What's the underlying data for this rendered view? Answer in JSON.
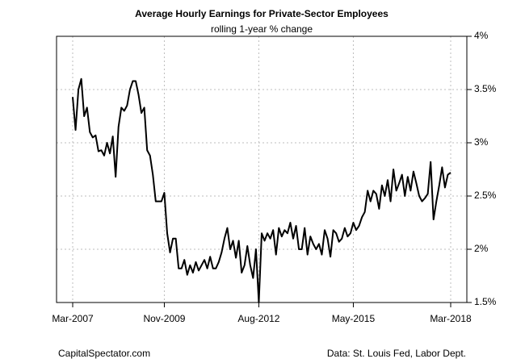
{
  "chart_data": {
    "type": "line",
    "title": "Average Hourly Earnings for Private-Sector Employees",
    "subtitle": "rolling 1-year % change",
    "caption": "CapitalSpectator.com",
    "source": "Data: St. Louis Fed, Labor Dept.",
    "color": "#000000",
    "grid": true,
    "categories": [
      "Mar-2007",
      null,
      null,
      null,
      null,
      null,
      null,
      null,
      null,
      null,
      null,
      null,
      null,
      null,
      null,
      null,
      null,
      null,
      null,
      null,
      null,
      null,
      null,
      null,
      null,
      null,
      null,
      null,
      null,
      null,
      null,
      null,
      "Nov-2009",
      null,
      null,
      null,
      null,
      null,
      null,
      null,
      null,
      null,
      null,
      null,
      null,
      null,
      null,
      null,
      null,
      null,
      null,
      null,
      null,
      null,
      null,
      null,
      null,
      null,
      null,
      null,
      null,
      null,
      null,
      null,
      null,
      "Aug-2012",
      null,
      null,
      null,
      null,
      null,
      null,
      null,
      null,
      null,
      null,
      null,
      null,
      null,
      null,
      null,
      null,
      null,
      null,
      null,
      null,
      null,
      null,
      null,
      null,
      null,
      null,
      null,
      null,
      null,
      null,
      null,
      null,
      "May-2015",
      null,
      null,
      null,
      null,
      null,
      null,
      null,
      null,
      null,
      null,
      null,
      null,
      null,
      null,
      null,
      null,
      null,
      null,
      null,
      null,
      null,
      null,
      null,
      null,
      null,
      null,
      null,
      null,
      null,
      null,
      null,
      null,
      null,
      "Mar-2018"
    ],
    "values": [
      3.43,
      3.12,
      3.5,
      3.6,
      3.25,
      3.33,
      3.1,
      3.05,
      3.07,
      2.92,
      2.93,
      2.88,
      3.0,
      2.9,
      3.06,
      2.68,
      3.15,
      3.33,
      3.3,
      3.35,
      3.5,
      3.58,
      3.58,
      3.45,
      3.28,
      3.33,
      2.93,
      2.88,
      2.7,
      2.45,
      2.45,
      2.45,
      2.53,
      2.15,
      1.97,
      2.1,
      2.1,
      1.82,
      1.82,
      1.9,
      1.76,
      1.85,
      1.78,
      1.88,
      1.8,
      1.85,
      1.9,
      1.82,
      1.93,
      1.82,
      1.82,
      1.88,
      1.97,
      2.1,
      2.2,
      2.0,
      2.08,
      1.92,
      2.08,
      1.78,
      1.85,
      2.03,
      1.85,
      1.73,
      2.0,
      1.5,
      2.15,
      2.08,
      2.15,
      2.1,
      2.18,
      1.95,
      2.2,
      2.12,
      2.18,
      2.15,
      2.25,
      2.1,
      2.22,
      2.0,
      2.0,
      2.2,
      1.95,
      2.12,
      2.05,
      2.0,
      2.05,
      1.95,
      2.18,
      2.1,
      1.93,
      2.18,
      2.15,
      2.07,
      2.1,
      2.2,
      2.12,
      2.15,
      2.25,
      2.18,
      2.22,
      2.3,
      2.35,
      2.55,
      2.45,
      2.55,
      2.52,
      2.38,
      2.6,
      2.5,
      2.65,
      2.45,
      2.75,
      2.55,
      2.62,
      2.7,
      2.5,
      2.68,
      2.55,
      2.73,
      2.62,
      2.5,
      2.45,
      2.48,
      2.52,
      2.82,
      2.28,
      2.45,
      2.6,
      2.77,
      2.58,
      2.7,
      2.72
    ],
    "ylim": [
      1.5,
      4
    ],
    "yticks": [
      {
        "value": 1.5,
        "label": "1.5%"
      },
      {
        "value": 2,
        "label": "2%"
      },
      {
        "value": 2.5,
        "label": "2.5%"
      },
      {
        "value": 3,
        "label": "3%"
      },
      {
        "value": 3.5,
        "label": "3.5%"
      },
      {
        "value": 4,
        "label": "4%"
      }
    ]
  }
}
